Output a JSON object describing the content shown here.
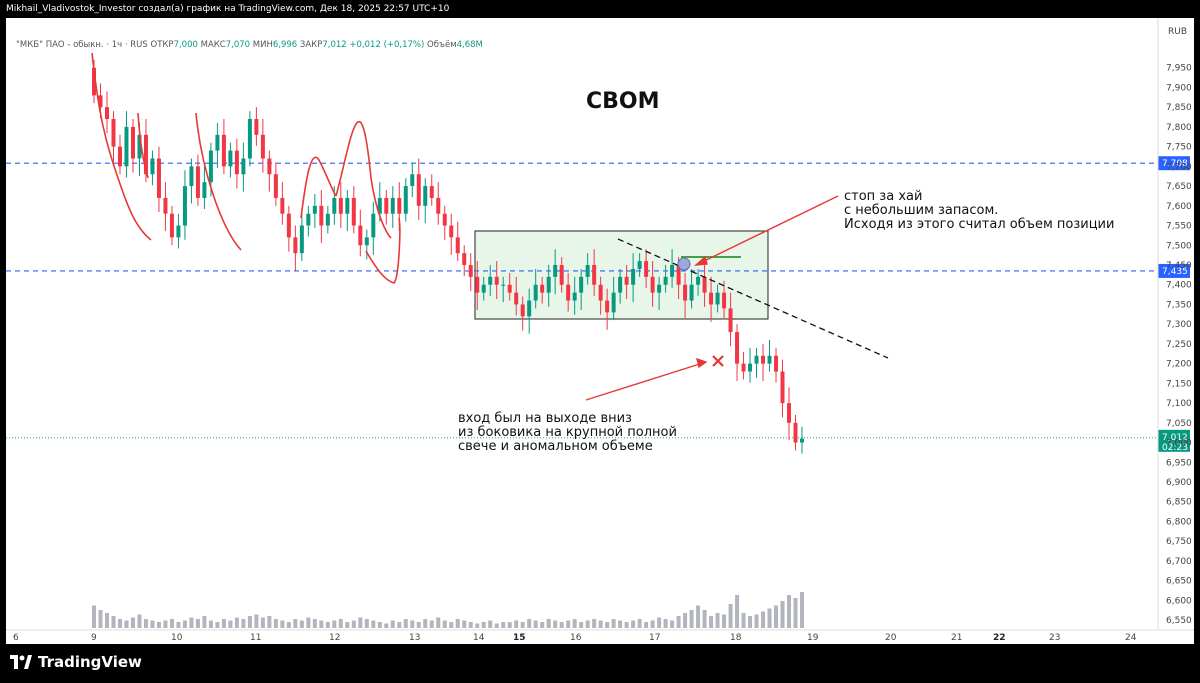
{
  "topbar": {
    "text": "Mikhail_Vladivostok_Investor создал(а) график на TradingView.com, Дек 18, 2025 22:57 UTC+10"
  },
  "legend": {
    "symbol": "\"МКБ\" ПАО - обыкн. · 1ч · RUS",
    "open_label": "ОТКР",
    "open": "7,000",
    "high_label": "МАКС",
    "high": "7,070",
    "low_label": "МИН",
    "low": "6,996",
    "close_label": "ЗАКР",
    "close": "7,012",
    "change": "+0,012 (+0,17%)",
    "volume_label": "Объём",
    "volume": "4,68M"
  },
  "currency": "RUB",
  "title": "СВОМ",
  "annotations": {
    "stop": [
      "стоп за хай",
      "с небольшим запасом.",
      "Исходя из этого считал объем позиции"
    ],
    "entry": [
      "вход был на выходе вниз",
      "из боковика на крупной полной",
      "свече и аномальном объеме"
    ]
  },
  "footer": {
    "brand": "TradingView"
  },
  "colors": {
    "up": "#089981",
    "down": "#f23645",
    "level": "#2962ff",
    "box_fill": "#e8f5e9",
    "drawing": "#e53935",
    "volume": "#b2b5be"
  },
  "chart_data": {
    "type": "candlestick",
    "title": "СВОМ",
    "ylim": [
      6.53,
      8.0
    ],
    "price_ticks": [
      "7,950",
      "7,900",
      "7,850",
      "7,800",
      "7,750",
      "7,700",
      "7,650",
      "7,600",
      "7,550",
      "7,500",
      "7,450",
      "7,400",
      "7,350",
      "7,300",
      "7,250",
      "7,200",
      "7,150",
      "7,100",
      "7,050",
      "7,000",
      "6,950",
      "6,900",
      "6,850",
      "6,800",
      "6,750",
      "6,700",
      "6,650",
      "6,600",
      "6,550"
    ],
    "time_ticks": [
      "6",
      "9",
      "10",
      "11",
      "12",
      "13",
      "14",
      "15",
      "16",
      "17",
      "18",
      "19",
      "20",
      "21",
      "22",
      "23",
      "24"
    ],
    "bold_days": [
      "15",
      "22"
    ],
    "levels": [
      {
        "price": 7.708,
        "label": "7,708"
      },
      {
        "price": 7.435,
        "label": "7,435"
      }
    ],
    "last_price": {
      "price": 7.012,
      "label": "7,012",
      "countdown": "02:23"
    },
    "range_box": {
      "from_day": 14.0,
      "to_day": 17.95,
      "high": 7.52,
      "low": 7.3
    },
    "closes": [
      7.88,
      7.85,
      7.82,
      7.75,
      7.7,
      7.8,
      7.72,
      7.78,
      7.68,
      7.72,
      7.62,
      7.58,
      7.52,
      7.55,
      7.65,
      7.7,
      7.62,
      7.66,
      7.74,
      7.78,
      7.7,
      7.74,
      7.68,
      7.72,
      7.82,
      7.78,
      7.72,
      7.68,
      7.62,
      7.58,
      7.52,
      7.48,
      7.55,
      7.58,
      7.6,
      7.55,
      7.58,
      7.62,
      7.58,
      7.62,
      7.55,
      7.5,
      7.52,
      7.58,
      7.62,
      7.58,
      7.62,
      7.58,
      7.65,
      7.68,
      7.6,
      7.65,
      7.62,
      7.58,
      7.55,
      7.52,
      7.48,
      7.45,
      7.42,
      7.38,
      7.4,
      7.42,
      7.4,
      7.4,
      7.38,
      7.35,
      7.32,
      7.36,
      7.4,
      7.38,
      7.42,
      7.45,
      7.4,
      7.36,
      7.38,
      7.42,
      7.45,
      7.4,
      7.36,
      7.33,
      7.38,
      7.42,
      7.4,
      7.44,
      7.46,
      7.42,
      7.38,
      7.4,
      7.42,
      7.45,
      7.4,
      7.36,
      7.4,
      7.42,
      7.38,
      7.35,
      7.38,
      7.34,
      7.28,
      7.2,
      7.18,
      7.2,
      7.22,
      7.2,
      7.22,
      7.18,
      7.1,
      7.05,
      7.0,
      7.01
    ],
    "volumes": [
      0.15,
      0.12,
      0.1,
      0.08,
      0.06,
      0.05,
      0.07,
      0.09,
      0.06,
      0.05,
      0.04,
      0.05,
      0.06,
      0.04,
      0.05,
      0.07,
      0.06,
      0.08,
      0.05,
      0.04,
      0.06,
      0.05,
      0.07,
      0.06,
      0.08,
      0.09,
      0.07,
      0.08,
      0.06,
      0.05,
      0.04,
      0.06,
      0.05,
      0.07,
      0.06,
      0.05,
      0.04,
      0.05,
      0.06,
      0.04,
      0.05,
      0.07,
      0.06,
      0.05,
      0.04,
      0.03,
      0.05,
      0.04,
      0.06,
      0.05,
      0.04,
      0.06,
      0.05,
      0.07,
      0.05,
      0.04,
      0.06,
      0.05,
      0.04,
      0.03,
      0.04,
      0.05,
      0.03,
      0.04,
      0.04,
      0.05,
      0.04,
      0.06,
      0.05,
      0.04,
      0.06,
      0.05,
      0.04,
      0.05,
      0.06,
      0.04,
      0.05,
      0.06,
      0.05,
      0.04,
      0.06,
      0.05,
      0.04,
      0.05,
      0.06,
      0.04,
      0.05,
      0.07,
      0.06,
      0.05,
      0.08,
      0.1,
      0.12,
      0.15,
      0.12,
      0.08,
      0.1,
      0.09,
      0.16,
      0.22,
      0.1,
      0.08,
      0.09,
      0.11,
      0.13,
      0.15,
      0.18,
      0.22,
      0.2,
      0.24
    ]
  }
}
